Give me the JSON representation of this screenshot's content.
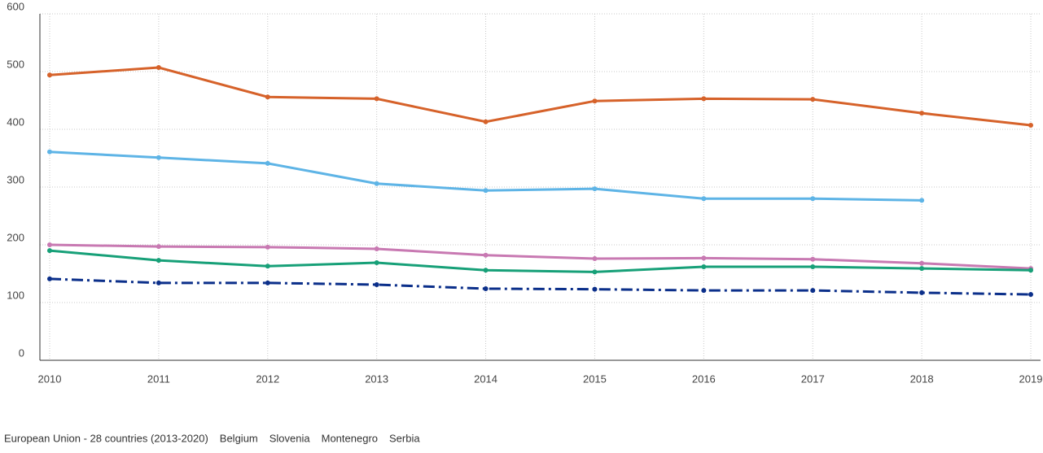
{
  "chart_data": {
    "type": "line",
    "x": [
      2010,
      2011,
      2012,
      2013,
      2014,
      2015,
      2016,
      2017,
      2018,
      2019
    ],
    "xlim": [
      2010,
      2019
    ],
    "xticks": [
      2010,
      2011,
      2012,
      2013,
      2014,
      2015,
      2016,
      2017,
      2018,
      2019
    ],
    "ylim": [
      0,
      600
    ],
    "yticks": [
      0,
      100,
      200,
      300,
      400,
      500,
      600
    ],
    "grid": true,
    "legend": "bottom",
    "series": [
      {
        "name": "European Union - 28 countries (2013-2020)",
        "color": "#0b2f8a",
        "dash": "dash-dot",
        "values": [
          141,
          134,
          134,
          131,
          124,
          123,
          121,
          121,
          117,
          114
        ]
      },
      {
        "name": "Belgium",
        "color": "#c879b2",
        "values": [
          200,
          197,
          196,
          193,
          182,
          176,
          177,
          175,
          168,
          159
        ]
      },
      {
        "name": "Slovenia",
        "color": "#17a078",
        "values": [
          190,
          173,
          163,
          169,
          156,
          153,
          162,
          162,
          159,
          156
        ]
      },
      {
        "name": "Montenegro",
        "color": "#d6622a",
        "values": [
          494,
          507,
          456,
          453,
          413,
          449,
          453,
          452,
          428,
          407
        ]
      },
      {
        "name": "Serbia",
        "color": "#5eb4e6",
        "values": [
          361,
          351,
          341,
          306,
          294,
          297,
          280,
          280,
          277,
          null
        ]
      }
    ]
  }
}
